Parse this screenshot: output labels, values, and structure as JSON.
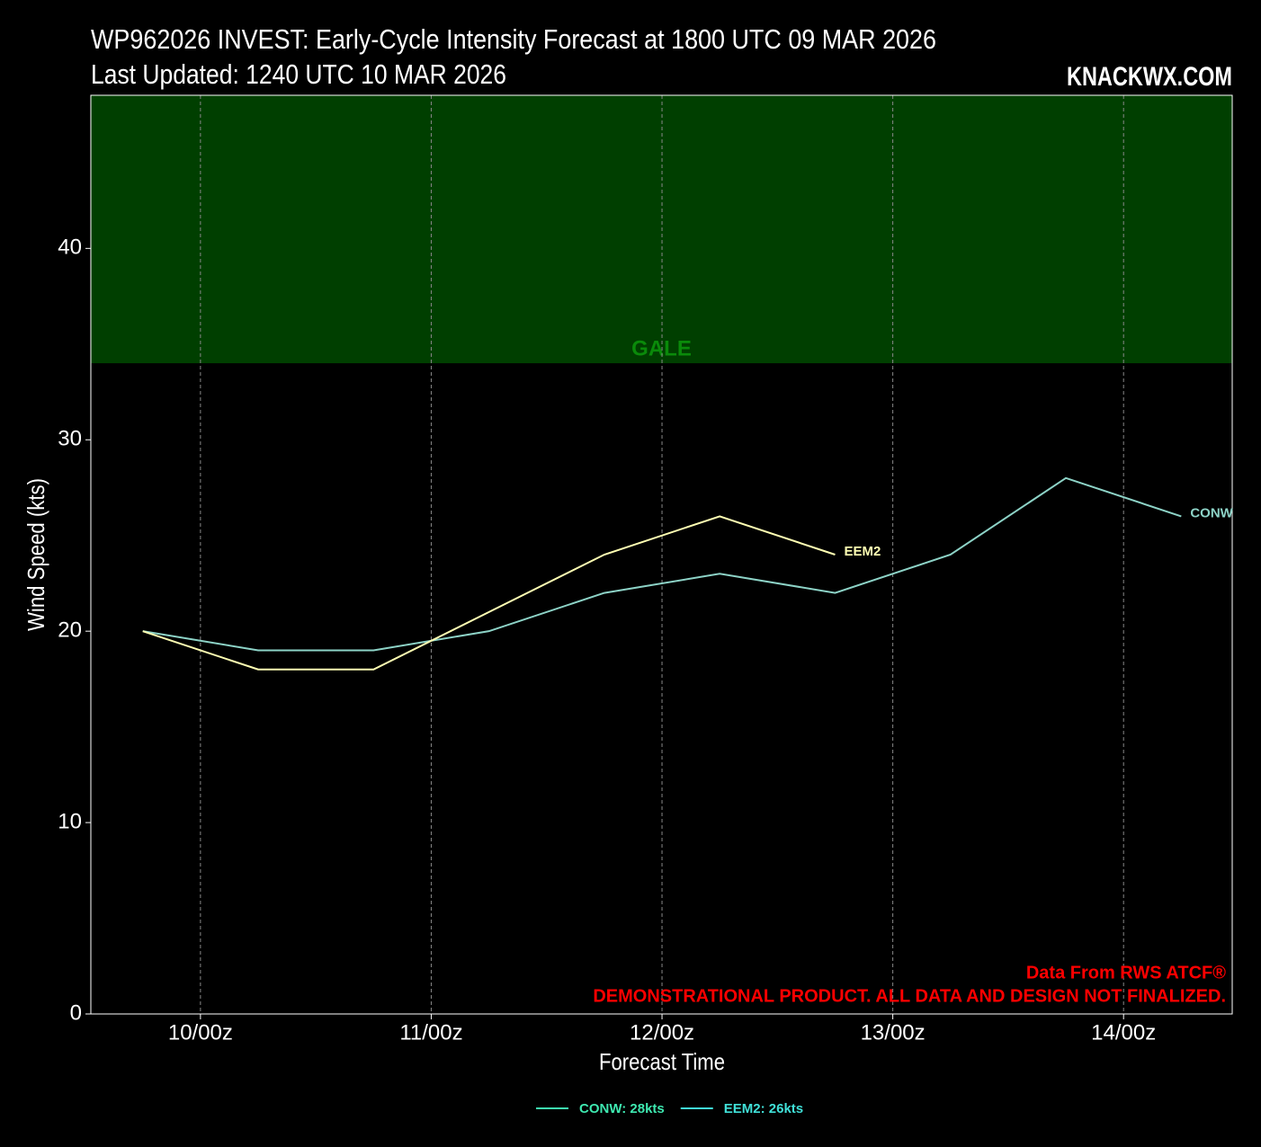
{
  "chart_data": {
    "type": "line",
    "title": "WP962026 INVEST: Early-Cycle Intensity Forecast at 1800 UTC 09 MAR 2026",
    "subtitle": "Last Updated: 1240 UTC 10 MAR 2026",
    "watermark": "KNACKWX.COM",
    "x_label": "Forecast Time",
    "y_label": "Wind Speed (kts)",
    "x": [
      -6,
      6,
      18,
      30,
      42,
      54,
      66,
      78,
      90,
      102
    ],
    "series": [
      {
        "name": "CONW",
        "color": "#8dd3c7",
        "values": [
          20,
          19,
          19,
          20,
          22,
          23,
          22,
          24,
          28,
          26
        ]
      },
      {
        "name": "EEM2",
        "color": "#ffffb3",
        "values": [
          20,
          18,
          18,
          21,
          24,
          26,
          24,
          null,
          null,
          null
        ]
      }
    ],
    "legend": [
      {
        "label": "CONW: 28kts",
        "color": "#3ee8b0"
      },
      {
        "label": "EEM2: 26kts",
        "color": "#40e0d8"
      }
    ],
    "xlim": [
      -11.4,
      107.3
    ],
    "ylim": [
      0,
      48
    ],
    "xticks": [
      {
        "value": 0,
        "label": "10/00z"
      },
      {
        "value": 24,
        "label": "11/00z"
      },
      {
        "value": 48,
        "label": "12/00z"
      },
      {
        "value": 72,
        "label": "13/00z"
      },
      {
        "value": 96,
        "label": "14/00z"
      }
    ],
    "yticks": [
      0,
      10,
      20,
      30,
      40
    ],
    "grid": "x",
    "band": {
      "label": "GALE",
      "from": 34,
      "color": "#003f00",
      "label_color": "#0a8a0a"
    },
    "annotations": [
      {
        "text": "Data From RWS ATCF®",
        "color": "#ff0000"
      },
      {
        "text": "DEMONSTRATIONAL PRODUCT. ALL DATA AND DESIGN NOT FINALIZED.",
        "color": "#ff0000"
      }
    ]
  }
}
